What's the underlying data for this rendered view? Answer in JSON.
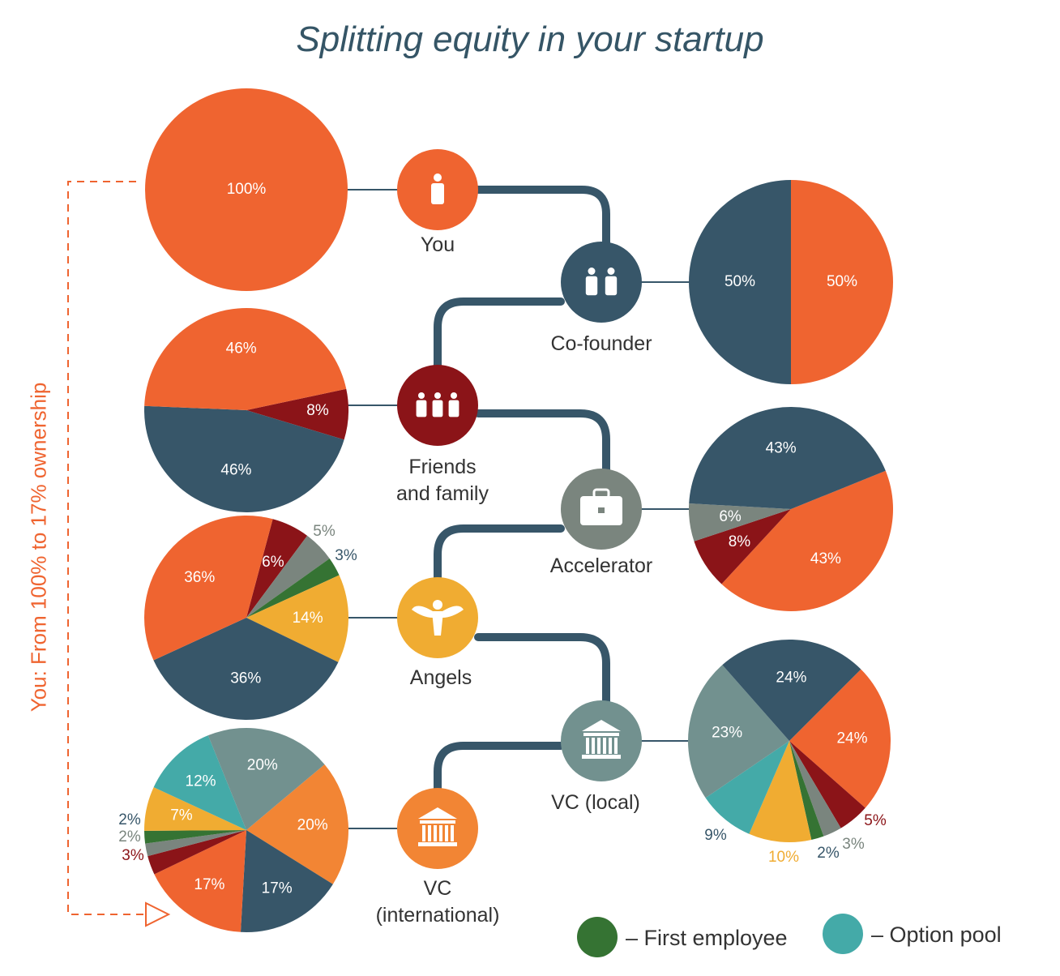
{
  "title": "Splitting equity in your startup",
  "side_label": "You: From 100% to 17% ownership",
  "colors": {
    "you": "#ef6430",
    "cofounder": "#375669",
    "friends": "#8b1418",
    "accelerator": "#7a857e",
    "angels": "#f0ac32",
    "first_employee": "#357333",
    "option_pool": "#44aaa8",
    "vc_local": "#72918f",
    "vc_international": "#f28534"
  },
  "nodes": [
    {
      "id": "you",
      "label": [
        "You"
      ],
      "icon": "person-icon"
    },
    {
      "id": "cofounder",
      "label": [
        "Co-founder"
      ],
      "icon": "two-people-icon"
    },
    {
      "id": "friends",
      "label": [
        "Friends",
        "and family"
      ],
      "icon": "family-icon"
    },
    {
      "id": "accelerator",
      "label": [
        "Accelerator"
      ],
      "icon": "briefcase-icon"
    },
    {
      "id": "angels",
      "label": [
        "Angels"
      ],
      "icon": "angel-icon"
    },
    {
      "id": "vc_local",
      "label": [
        "VC (local)"
      ],
      "icon": "bank-icon"
    },
    {
      "id": "vc_international",
      "label": [
        "VC",
        "(international)"
      ],
      "icon": "bank-icon"
    }
  ],
  "chart_data": [
    {
      "type": "pie",
      "stage": "You",
      "slices": [
        {
          "holder": "you",
          "value": 100,
          "label": "100%"
        }
      ]
    },
    {
      "type": "pie",
      "stage": "Co-founder",
      "slices": [
        {
          "holder": "you",
          "value": 50,
          "label": "50%"
        },
        {
          "holder": "cofounder",
          "value": 50,
          "label": "50%"
        }
      ]
    },
    {
      "type": "pie",
      "stage": "Friends and family",
      "slices": [
        {
          "holder": "friends",
          "value": 8,
          "label": "8%"
        },
        {
          "holder": "cofounder",
          "value": 46,
          "label": "46%"
        },
        {
          "holder": "you",
          "value": 46,
          "label": "46%"
        }
      ]
    },
    {
      "type": "pie",
      "stage": "Accelerator",
      "slices": [
        {
          "holder": "you",
          "value": 43,
          "label": "43%"
        },
        {
          "holder": "friends",
          "value": 8,
          "label": "8%"
        },
        {
          "holder": "accelerator",
          "value": 6,
          "label": "6%"
        },
        {
          "holder": "cofounder",
          "value": 43,
          "label": "43%"
        }
      ]
    },
    {
      "type": "pie",
      "stage": "Angels",
      "slices": [
        {
          "holder": "friends",
          "value": 6,
          "label": "6%"
        },
        {
          "holder": "accelerator",
          "value": 5,
          "label": "5%"
        },
        {
          "holder": "first_employee",
          "value": 3,
          "label": "3%"
        },
        {
          "holder": "angels",
          "value": 14,
          "label": "14%"
        },
        {
          "holder": "cofounder",
          "value": 36,
          "label": "36%"
        },
        {
          "holder": "you",
          "value": 36,
          "label": "36%"
        }
      ]
    },
    {
      "type": "pie",
      "stage": "VC (local)",
      "slices": [
        {
          "holder": "you",
          "value": 24,
          "label": "24%"
        },
        {
          "holder": "friends",
          "value": 5,
          "label": "5%"
        },
        {
          "holder": "accelerator",
          "value": 3,
          "label": "3%"
        },
        {
          "holder": "first_employee",
          "value": 2,
          "label": "2%"
        },
        {
          "holder": "angels",
          "value": 10,
          "label": "10%"
        },
        {
          "holder": "option_pool",
          "value": 9,
          "label": "9%"
        },
        {
          "holder": "vc_local",
          "value": 23,
          "label": "23%"
        },
        {
          "holder": "cofounder",
          "value": 24,
          "label": "24%"
        }
      ]
    },
    {
      "type": "pie",
      "stage": "VC (international)",
      "slices": [
        {
          "holder": "vc_international",
          "value": 20,
          "label": "20%"
        },
        {
          "holder": "cofounder",
          "value": 17,
          "label": "17%"
        },
        {
          "holder": "you",
          "value": 17,
          "label": "17%"
        },
        {
          "holder": "friends",
          "value": 3,
          "label": "3%"
        },
        {
          "holder": "accelerator",
          "value": 2,
          "label": "2%"
        },
        {
          "holder": "first_employee",
          "value": 2,
          "label": "2%"
        },
        {
          "holder": "angels",
          "value": 7,
          "label": "7%"
        },
        {
          "holder": "option_pool",
          "value": 12,
          "label": "12%"
        },
        {
          "holder": "vc_local",
          "value": 20,
          "label": "20%"
        }
      ]
    }
  ],
  "legend": [
    {
      "holder": "first_employee",
      "label": "– First employee"
    },
    {
      "holder": "option_pool",
      "label": "– Option pool"
    }
  ]
}
